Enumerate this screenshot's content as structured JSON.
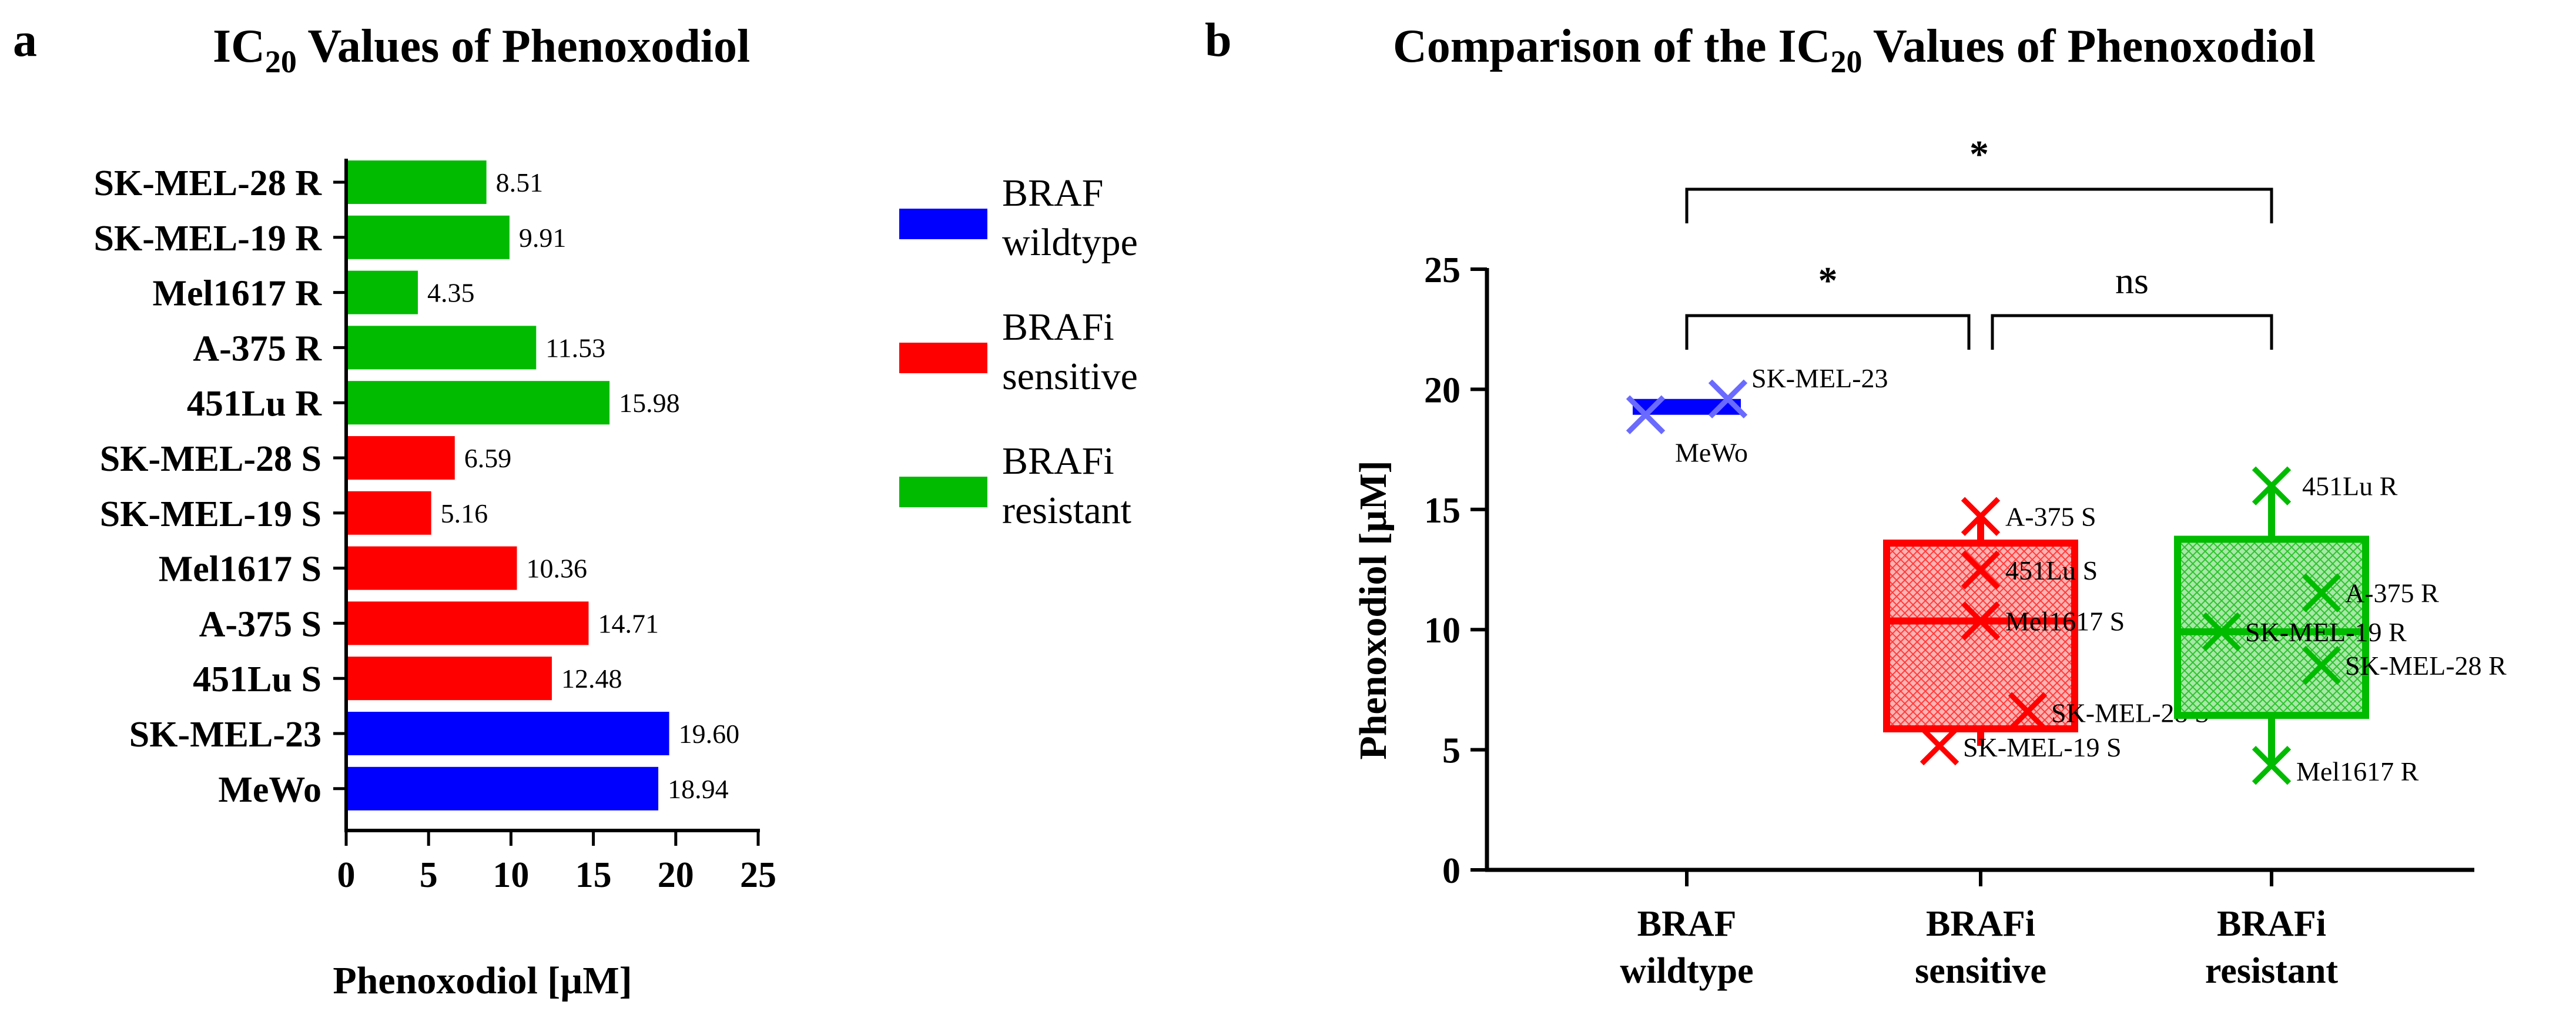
{
  "chart_data": [
    {
      "panel_label": "a",
      "type": "bar",
      "orientation": "horizontal",
      "title": {
        "prefix": "IC",
        "subscript": "20",
        "suffix": " Values of Phenoxodiol"
      },
      "xlabel": "Phenoxodiol [µM]",
      "xlim": [
        0,
        25
      ],
      "xticks": [
        "0",
        "5",
        "10",
        "15",
        "20",
        "25"
      ],
      "categories": [
        "SK-MEL-28 R",
        "SK-MEL-19 R",
        "Mel1617 R",
        "A-375 R",
        "451Lu R",
        "SK-MEL-28 S",
        "SK-MEL-19 S",
        "Mel1617 S",
        "A-375 S",
        "451Lu S",
        "SK-MEL-23",
        "MeWo"
      ],
      "values": [
        8.51,
        9.91,
        4.35,
        11.53,
        15.98,
        6.59,
        5.16,
        10.36,
        14.71,
        12.48,
        19.6,
        18.94
      ],
      "value_labels": [
        "8.51",
        "9.91",
        "4.35",
        "11.53",
        "15.98",
        "6.59",
        "5.16",
        "10.36",
        "14.71",
        "12.48",
        "19.60",
        "18.94"
      ],
      "groups": [
        "resistant",
        "resistant",
        "resistant",
        "resistant",
        "resistant",
        "sensitive",
        "sensitive",
        "sensitive",
        "sensitive",
        "sensitive",
        "wildtype",
        "wildtype"
      ],
      "legend": [
        {
          "key": "wildtype",
          "line1": "BRAF",
          "line2": "wildtype",
          "color": "#0000ff"
        },
        {
          "key": "sensitive",
          "line1": "BRAFi",
          "line2": "sensitive",
          "color": "#ff0000"
        },
        {
          "key": "resistant",
          "line1": "BRAFi",
          "line2": "resistant",
          "color": "#00bb00"
        }
      ]
    },
    {
      "panel_label": "b",
      "type": "box",
      "title": {
        "prefix": "Comparison of the IC",
        "subscript": "20",
        "suffix": " Values of Phenoxodiol"
      },
      "ylabel": "Phenoxodiol [µM]",
      "ylim": [
        0,
        25
      ],
      "yticks": [
        "0",
        "5",
        "10",
        "15",
        "20",
        "25"
      ],
      "groups": [
        {
          "key": "wildtype",
          "label_line1": "BRAF",
          "label_line2": "wildtype",
          "color": "#0000ff",
          "fill": "#0000ff",
          "q1": 18.94,
          "median": 19.27,
          "q3": 19.6,
          "min": 18.94,
          "max": 19.6,
          "points": [
            {
              "label": "MeWo",
              "value": 18.94
            },
            {
              "label": "SK-MEL-23",
              "value": 19.6
            }
          ]
        },
        {
          "key": "sensitive",
          "label_line1": "BRAFi",
          "label_line2": "sensitive",
          "color": "#ff0000",
          "fill": "#ff9a9a",
          "q1": 5.87,
          "median": 10.36,
          "q3": 13.6,
          "min": 5.16,
          "max": 14.71,
          "points": [
            {
              "label": "A-375 S",
              "value": 14.71
            },
            {
              "label": "451Lu S",
              "value": 12.48
            },
            {
              "label": "Mel1617 S",
              "value": 10.36
            },
            {
              "label": "SK-MEL-28 S",
              "value": 6.59
            },
            {
              "label": "SK-MEL-19 S",
              "value": 5.16
            }
          ]
        },
        {
          "key": "resistant",
          "label_line1": "BRAFi",
          "label_line2": "resistant",
          "color": "#00bb00",
          "fill": "#9be29b",
          "q1": 6.43,
          "median": 9.91,
          "q3": 13.76,
          "min": 4.35,
          "max": 15.98,
          "points": [
            {
              "label": "451Lu R",
              "value": 15.98
            },
            {
              "label": "A-375 R",
              "value": 11.53
            },
            {
              "label": "SK-MEL-19 R",
              "value": 9.91
            },
            {
              "label": "SK-MEL-28 R",
              "value": 8.51
            },
            {
              "label": "Mel1617 R",
              "value": 4.35
            }
          ]
        }
      ],
      "significance": [
        {
          "from": "wildtype",
          "to": "sensitive",
          "label": "*"
        },
        {
          "from": "sensitive",
          "to": "resistant",
          "label": "ns"
        },
        {
          "from": "wildtype",
          "to": "resistant",
          "label": "*"
        }
      ]
    }
  ]
}
